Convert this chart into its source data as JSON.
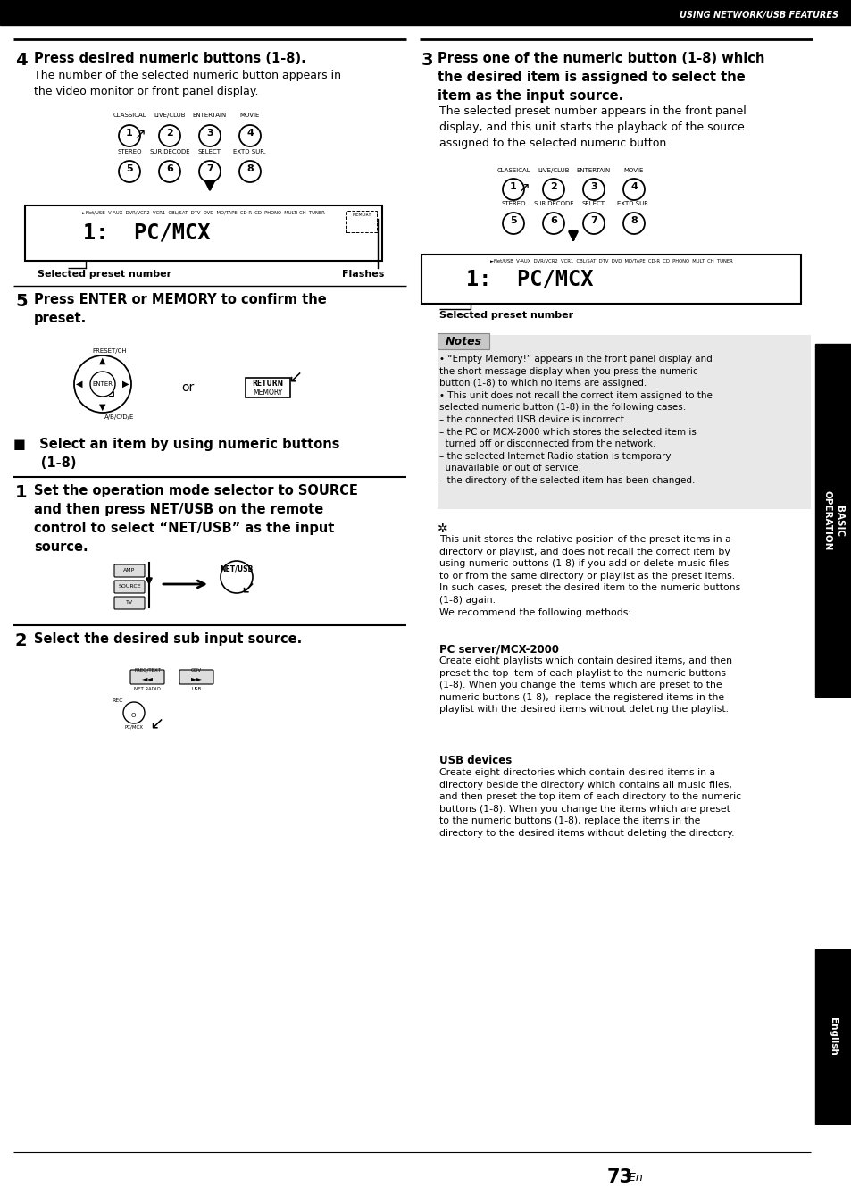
{
  "page_bg": "#ffffff",
  "header_bg": "#000000",
  "header_text": "USING NETWORK/USB FEATURES",
  "header_text_color": "#ffffff",
  "sidebar_right_text": "BASIC\nOPERATION",
  "sidebar_right_text_color": "#ffffff",
  "sidebar_bottom_text": "English",
  "sidebar_bottom_text_color": "#ffffff",
  "step4_num": "4",
  "step4_title": "Press desired numeric buttons (1-8).",
  "step4_body": "The number of the selected numeric button appears in\nthe video monitor or front panel display.",
  "step4_label1": "Selected preset number",
  "step4_label2": "Flashes",
  "step4_display_text": "1:  PC/MCX",
  "step4_display_small": "►Net/USB  V-AUX  DVR/VCR2  VCR1  CBL/SAT  DTV  DVD  MD/TAPE  CD-R  CD  PHONO  MULTI CH  TUNER",
  "step5_num": "5",
  "step5_title": "Press ENTER or MEMORY to confirm the\npreset.",
  "section_title": "■   Select an item by using numeric buttons\n     (1-8)",
  "step1_num": "1",
  "step1_title": "Set the operation mode selector to SOURCE\nand then press NET/USB on the remote\ncontrol to select “NET/USB” as the input\nsource.",
  "step2_num": "2",
  "step2_title": "Select the desired sub input source.",
  "step3_num": "3",
  "step3_title": "Press one of the numeric button (1-8) which\nthe desired item is assigned to select the\nitem as the input source.",
  "step3_body": "The selected preset number appears in the front panel\ndisplay, and this unit starts the playback of the source\nassigned to the selected numeric button.",
  "step3_label": "Selected preset number",
  "step3_display_text": "1:  PC/MCX",
  "step3_display_small": "►Net/USB  V-AUX  DVR/VCR2  VCR1  CBL/SAT  DTV  DVD  MD/TAPE  CD-R  CD  PHONO  MULTI CH  TUNER",
  "notes_title": "Notes",
  "notes": [
    "“Empty Memory!” appears in the front panel display and\nthe short message display when you press the numeric\nbutton (1-8) to which no items are assigned.",
    "This unit does not recall the correct item assigned to the\nselected numeric button (1-8) in the following cases:\n– the connected USB device is incorrect.\n– the PC or MCX-2000 which stores the selected item is\n  turned off or disconnected from the network.\n– the selected Internet Radio station is temporary\n  unavailable or out of service.\n– the directory of the selected item has been changed."
  ],
  "tip_body": "This unit stores the relative position of the preset items in a\ndirectory or playlist, and does not recall the correct item by\nusing numeric buttons (1-8) if you add or delete music files\nto or from the same directory or playlist as the preset items.\nIn such cases, preset the desired item to the numeric buttons\n(1-8) again.\nWe recommend the following methods:",
  "pc_server_title": "PC server/MCX-2000",
  "pc_server_body": "Create eight playlists which contain desired items, and then\npreset the top item of each playlist to the numeric buttons\n(1-8). When you change the items which are preset to the\nnumeric buttons (1-8),  replace the registered items in the\nplaylist with the desired items without deleting the playlist.",
  "usb_title": "USB devices",
  "usb_body": "Create eight directories which contain desired items in a\ndirectory beside the directory which contains all music files,\nand then preset the top item of each directory to the numeric\nbuttons (1-8). When you change the items which are preset\nto the numeric buttons (1-8), replace the items in the\ndirectory to the desired items without deleting the directory."
}
